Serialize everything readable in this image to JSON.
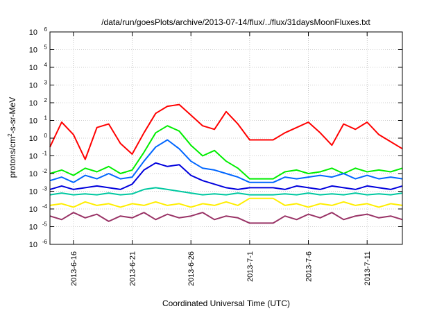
{
  "chart_data": {
    "type": "line",
    "title": "/data/run/goesPlots/archive/2013-07-14/flux/../flux/31daysMoonFluxes.txt",
    "xlabel": "Coordinated Universal Time (UTC)",
    "ylabel": "protons/cm²-s-sr-MeV",
    "ylabel_parts": {
      "pre": "protons/cm",
      "sup": "2",
      "post": "-s-sr-MeV"
    },
    "yscale": "log",
    "ylim_exponent": [
      -6,
      6
    ],
    "y_ticks": [
      {
        "base": "10",
        "exp": "-6",
        "value": -6
      },
      {
        "base": "10",
        "exp": "-5",
        "value": -5
      },
      {
        "base": "10",
        "exp": "-4",
        "value": -4
      },
      {
        "base": "10",
        "exp": "-3",
        "value": -3
      },
      {
        "base": "10",
        "exp": "-2",
        "value": -2
      },
      {
        "base": "10",
        "exp": "-1",
        "value": -1
      },
      {
        "base": "10",
        "exp": "0",
        "value": 0
      },
      {
        "base": "10",
        "exp": "1",
        "value": 1
      },
      {
        "base": "10",
        "exp": "2",
        "value": 2
      },
      {
        "base": "10",
        "exp": "3",
        "value": 3
      },
      {
        "base": "10",
        "exp": "4",
        "value": 4
      },
      {
        "base": "10",
        "exp": "5",
        "value": 5
      },
      {
        "base": "10",
        "exp": "6",
        "value": 6
      }
    ],
    "xlim": [
      "2013-06-14",
      "2013-07-14"
    ],
    "x_ticks": [
      {
        "label": "2013-6-16",
        "value": "2013-06-16"
      },
      {
        "label": "2013-6-21",
        "value": "2013-06-21"
      },
      {
        "label": "2013-6-26",
        "value": "2013-06-26"
      },
      {
        "label": "2013-7-1",
        "value": "2013-07-01"
      },
      {
        "label": "2013-7-6",
        "value": "2013-07-06"
      },
      {
        "label": "2013-7-11",
        "value": "2013-07-11"
      }
    ],
    "grid": true,
    "legend": "none",
    "series_note": "y values are log10 of flux (protons/cm2-s-sr-MeV)",
    "series": [
      {
        "color": "#ff0000",
        "x": [
          "2013-06-14",
          "2013-06-15",
          "2013-06-16",
          "2013-06-17",
          "2013-06-18",
          "2013-06-19",
          "2013-06-20",
          "2013-06-21",
          "2013-06-22",
          "2013-06-23",
          "2013-06-24",
          "2013-06-25",
          "2013-06-26",
          "2013-06-27",
          "2013-06-28",
          "2013-06-29",
          "2013-06-30",
          "2013-07-01",
          "2013-07-02",
          "2013-07-03",
          "2013-07-04",
          "2013-07-05",
          "2013-07-06",
          "2013-07-07",
          "2013-07-08",
          "2013-07-09",
          "2013-07-10",
          "2013-07-11",
          "2013-07-12",
          "2013-07-13",
          "2013-07-14"
        ],
        "y": [
          -0.5,
          0.9,
          0.2,
          -1.2,
          0.6,
          0.8,
          -0.3,
          -0.9,
          0.3,
          1.4,
          1.8,
          1.9,
          1.3,
          0.7,
          0.5,
          1.5,
          0.8,
          -0.1,
          -0.1,
          -0.1,
          0.3,
          0.6,
          0.9,
          0.3,
          -0.4,
          0.8,
          0.5,
          0.9,
          0.2,
          -0.2,
          -0.6
        ]
      },
      {
        "color": "#00ee00",
        "x": [
          "2013-06-14",
          "2013-06-15",
          "2013-06-16",
          "2013-06-17",
          "2013-06-18",
          "2013-06-19",
          "2013-06-20",
          "2013-06-21",
          "2013-06-22",
          "2013-06-23",
          "2013-06-24",
          "2013-06-25",
          "2013-06-26",
          "2013-06-27",
          "2013-06-28",
          "2013-06-29",
          "2013-06-30",
          "2013-07-01",
          "2013-07-02",
          "2013-07-03",
          "2013-07-04",
          "2013-07-05",
          "2013-07-06",
          "2013-07-07",
          "2013-07-08",
          "2013-07-09",
          "2013-07-10",
          "2013-07-11",
          "2013-07-12",
          "2013-07-13",
          "2013-07-14"
        ],
        "y": [
          -2.0,
          -1.8,
          -2.1,
          -1.7,
          -1.9,
          -1.6,
          -2.0,
          -1.8,
          -0.8,
          0.3,
          0.7,
          0.4,
          -0.4,
          -1.0,
          -0.7,
          -1.3,
          -1.7,
          -2.3,
          -2.3,
          -2.3,
          -1.9,
          -1.8,
          -2.0,
          -1.9,
          -1.7,
          -2.0,
          -1.7,
          -1.9,
          -1.8,
          -1.9,
          -1.7
        ]
      },
      {
        "color": "#0066ff",
        "x": [
          "2013-06-14",
          "2013-06-15",
          "2013-06-16",
          "2013-06-17",
          "2013-06-18",
          "2013-06-19",
          "2013-06-20",
          "2013-06-21",
          "2013-06-22",
          "2013-06-23",
          "2013-06-24",
          "2013-06-25",
          "2013-06-26",
          "2013-06-27",
          "2013-06-28",
          "2013-06-29",
          "2013-06-30",
          "2013-07-01",
          "2013-07-02",
          "2013-07-03",
          "2013-07-04",
          "2013-07-05",
          "2013-07-06",
          "2013-07-07",
          "2013-07-08",
          "2013-07-09",
          "2013-07-10",
          "2013-07-11",
          "2013-07-12",
          "2013-07-13",
          "2013-07-14"
        ],
        "y": [
          -2.4,
          -2.2,
          -2.5,
          -2.1,
          -2.3,
          -2.0,
          -2.3,
          -2.2,
          -1.3,
          -0.5,
          -0.1,
          -0.6,
          -1.3,
          -1.7,
          -1.8,
          -2.0,
          -2.2,
          -2.5,
          -2.5,
          -2.5,
          -2.2,
          -2.3,
          -2.2,
          -2.1,
          -2.2,
          -2.0,
          -2.3,
          -2.1,
          -2.3,
          -2.2,
          -2.3
        ]
      },
      {
        "color": "#0000dd",
        "x": [
          "2013-06-14",
          "2013-06-15",
          "2013-06-16",
          "2013-06-17",
          "2013-06-18",
          "2013-06-19",
          "2013-06-20",
          "2013-06-21",
          "2013-06-22",
          "2013-06-23",
          "2013-06-24",
          "2013-06-25",
          "2013-06-26",
          "2013-06-27",
          "2013-06-28",
          "2013-06-29",
          "2013-06-30",
          "2013-07-01",
          "2013-07-02",
          "2013-07-03",
          "2013-07-04",
          "2013-07-05",
          "2013-07-06",
          "2013-07-07",
          "2013-07-08",
          "2013-07-09",
          "2013-07-10",
          "2013-07-11",
          "2013-07-12",
          "2013-07-13",
          "2013-07-14"
        ],
        "y": [
          -2.9,
          -2.7,
          -2.9,
          -2.8,
          -2.7,
          -2.8,
          -2.9,
          -2.6,
          -1.8,
          -1.4,
          -1.6,
          -1.5,
          -2.1,
          -2.4,
          -2.6,
          -2.8,
          -2.9,
          -2.8,
          -2.8,
          -2.8,
          -2.9,
          -2.7,
          -2.8,
          -2.9,
          -2.7,
          -2.8,
          -2.9,
          -2.7,
          -2.8,
          -2.9,
          -2.7
        ]
      },
      {
        "color": "#00c8a0",
        "x": [
          "2013-06-14",
          "2013-06-15",
          "2013-06-16",
          "2013-06-17",
          "2013-06-18",
          "2013-06-19",
          "2013-06-20",
          "2013-06-21",
          "2013-06-22",
          "2013-06-23",
          "2013-06-24",
          "2013-06-25",
          "2013-06-26",
          "2013-06-27",
          "2013-06-28",
          "2013-06-29",
          "2013-06-30",
          "2013-07-01",
          "2013-07-02",
          "2013-07-03",
          "2013-07-04",
          "2013-07-05",
          "2013-07-06",
          "2013-07-07",
          "2013-07-08",
          "2013-07-09",
          "2013-07-10",
          "2013-07-11",
          "2013-07-12",
          "2013-07-13",
          "2013-07-14"
        ],
        "y": [
          -3.2,
          -3.1,
          -3.2,
          -3.15,
          -3.2,
          -3.1,
          -3.2,
          -3.15,
          -2.9,
          -2.8,
          -2.9,
          -3.0,
          -3.1,
          -3.2,
          -3.15,
          -3.2,
          -3.1,
          -3.2,
          -3.2,
          -3.2,
          -3.15,
          -3.2,
          -3.1,
          -3.2,
          -3.15,
          -3.2,
          -3.1,
          -3.2,
          -3.15,
          -3.2,
          -3.1
        ]
      },
      {
        "color": "#ffee00",
        "x": [
          "2013-06-14",
          "2013-06-15",
          "2013-06-16",
          "2013-06-17",
          "2013-06-18",
          "2013-06-19",
          "2013-06-20",
          "2013-06-21",
          "2013-06-22",
          "2013-06-23",
          "2013-06-24",
          "2013-06-25",
          "2013-06-26",
          "2013-06-27",
          "2013-06-28",
          "2013-06-29",
          "2013-06-30",
          "2013-07-01",
          "2013-07-02",
          "2013-07-03",
          "2013-07-04",
          "2013-07-05",
          "2013-07-06",
          "2013-07-07",
          "2013-07-08",
          "2013-07-09",
          "2013-07-10",
          "2013-07-11",
          "2013-07-12",
          "2013-07-13",
          "2013-07-14"
        ],
        "y": [
          -3.8,
          -3.7,
          -3.9,
          -3.6,
          -3.8,
          -3.7,
          -3.9,
          -3.7,
          -3.8,
          -3.6,
          -3.8,
          -3.7,
          -3.9,
          -3.7,
          -3.8,
          -3.6,
          -3.8,
          -3.4,
          -3.4,
          -3.4,
          -3.8,
          -3.7,
          -3.9,
          -3.7,
          -3.8,
          -3.6,
          -3.8,
          -3.7,
          -3.9,
          -3.7,
          -3.8
        ]
      },
      {
        "color": "#993366",
        "x": [
          "2013-06-14",
          "2013-06-15",
          "2013-06-16",
          "2013-06-17",
          "2013-06-18",
          "2013-06-19",
          "2013-06-20",
          "2013-06-21",
          "2013-06-22",
          "2013-06-23",
          "2013-06-24",
          "2013-06-25",
          "2013-06-26",
          "2013-06-27",
          "2013-06-28",
          "2013-06-29",
          "2013-06-30",
          "2013-07-01",
          "2013-07-02",
          "2013-07-03",
          "2013-07-04",
          "2013-07-05",
          "2013-07-06",
          "2013-07-07",
          "2013-07-08",
          "2013-07-09",
          "2013-07-10",
          "2013-07-11",
          "2013-07-12",
          "2013-07-13",
          "2013-07-14"
        ],
        "y": [
          -4.4,
          -4.6,
          -4.2,
          -4.5,
          -4.3,
          -4.7,
          -4.4,
          -4.5,
          -4.2,
          -4.6,
          -4.3,
          -4.5,
          -4.4,
          -4.2,
          -4.6,
          -4.4,
          -4.5,
          -4.8,
          -4.8,
          -4.8,
          -4.4,
          -4.6,
          -4.3,
          -4.5,
          -4.2,
          -4.6,
          -4.4,
          -4.3,
          -4.5,
          -4.4,
          -4.6
        ]
      }
    ]
  }
}
